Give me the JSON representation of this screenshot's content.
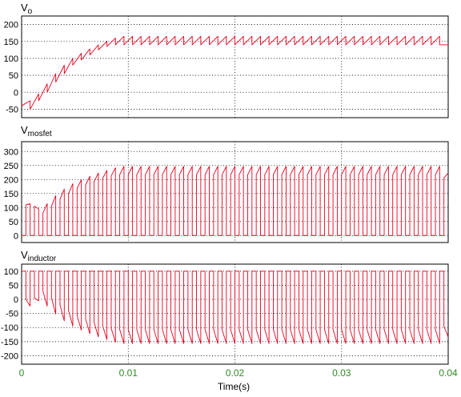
{
  "colors": {
    "trace": "#e8001c",
    "x_tick_labels": "#2e8b22",
    "axes": "#000000",
    "background": "#ffffff"
  },
  "x_axis": {
    "label": "Time(s)",
    "range": [
      0,
      0.04
    ],
    "ticks": [
      0,
      0.01,
      0.02,
      0.03,
      0.04
    ],
    "tick_labels": [
      "0",
      "0.01",
      "0.02",
      "0.03",
      "0.04"
    ]
  },
  "chart_data": [
    {
      "type": "line",
      "title_main": "V",
      "title_sub": "o",
      "ylim": [
        -75,
        225
      ],
      "yticks": [
        -50,
        0,
        50,
        100,
        150,
        200
      ],
      "ytick_labels": [
        "-50",
        "0",
        "50",
        "100",
        "150",
        "200"
      ],
      "grid": true,
      "series": [
        {
          "x": [
            0,
            0.0008,
            0.0008,
            0.0016,
            0.0016,
            0.0024,
            0.0024,
            0.0032,
            0.0032,
            0.004,
            0.004,
            0.0048,
            0.0048,
            0.0056,
            0.0056,
            0.0064,
            0.0064,
            0.0072,
            0.0072,
            0.008,
            0.008,
            0.0088,
            0.0088,
            0.0096,
            0.0096,
            0.0104,
            0.0104,
            0.0112,
            0.0112,
            0.012,
            0.012,
            0.0128,
            0.0128,
            0.0136,
            0.0136,
            0.0144,
            0.0144,
            0.0152,
            0.0152,
            0.016,
            0.016,
            0.0168,
            0.0168,
            0.0176,
            0.0176,
            0.0184,
            0.0184,
            0.0192,
            0.0192,
            0.02,
            0.02,
            0.0208,
            0.0208,
            0.0216,
            0.0216,
            0.0224,
            0.0224,
            0.0232,
            0.0232,
            0.024,
            0.024,
            0.0248,
            0.0248,
            0.0256,
            0.0256,
            0.0264,
            0.0264,
            0.0272,
            0.0272,
            0.028,
            0.028,
            0.0288,
            0.0288,
            0.0296,
            0.0296,
            0.0304,
            0.0304,
            0.0312,
            0.0312,
            0.032,
            0.032,
            0.0328,
            0.0328,
            0.0336,
            0.0336,
            0.0344,
            0.0344,
            0.0352,
            0.0352,
            0.036,
            0.036,
            0.0368,
            0.0368,
            0.0376,
            0.0376,
            0.0384,
            0.0384,
            0.0392,
            0.0392,
            0.04
          ],
          "y": [
            -40,
            -25,
            -50,
            -5,
            -25,
            25,
            0,
            55,
            30,
            80,
            55,
            100,
            80,
            115,
            95,
            128,
            110,
            140,
            125,
            150,
            135,
            160,
            140,
            165,
            140,
            165,
            140,
            165,
            140,
            165,
            140,
            165,
            140,
            165,
            140,
            165,
            140,
            165,
            140,
            165,
            140,
            165,
            140,
            165,
            140,
            165,
            140,
            165,
            140,
            165,
            140,
            165,
            140,
            165,
            140,
            165,
            140,
            165,
            140,
            165,
            140,
            165,
            140,
            165,
            140,
            165,
            140,
            165,
            140,
            165,
            140,
            165,
            140,
            165,
            140,
            165,
            140,
            165,
            140,
            165,
            140,
            165,
            140,
            165,
            140,
            165,
            140,
            165,
            140,
            165,
            140,
            165,
            140,
            165,
            140,
            165,
            140,
            165,
            140,
            140
          ]
        }
      ]
    },
    {
      "type": "line",
      "title_main": "V",
      "title_sub": "mosfet",
      "ylim": [
        -25,
        335
      ],
      "yticks": [
        0,
        50,
        100,
        150,
        200,
        250,
        300
      ],
      "ytick_labels": [
        "0",
        "50",
        "100",
        "150",
        "200",
        "250",
        "300"
      ],
      "grid": true,
      "series": [
        {
          "x": [
            0,
            0.0008,
            0.0008,
            0.0016,
            0.0016,
            0.0024,
            0.0024,
            0.0032,
            0.0032,
            0.004,
            0.004,
            0.0048,
            0.0048,
            0.0056,
            0.0056,
            0.0064,
            0.0064,
            0.0072,
            0.0072,
            0.008,
            0.008,
            0.0088,
            0.0088,
            0.0096,
            0.0096,
            0.0104,
            0.0104,
            0.0112,
            0.0112,
            0.012,
            0.012,
            0.0128,
            0.0128,
            0.0136,
            0.0136,
            0.0144,
            0.0144,
            0.0152,
            0.0152,
            0.016,
            0.016,
            0.0168,
            0.0168,
            0.0176,
            0.0176,
            0.0184,
            0.0184,
            0.0192,
            0.0192,
            0.02,
            0.02,
            0.0208,
            0.0208,
            0.0216,
            0.0216,
            0.0224,
            0.0224,
            0.0232,
            0.0232,
            0.024,
            0.024,
            0.0248,
            0.0248,
            0.0256,
            0.0256,
            0.0264,
            0.0264,
            0.0272,
            0.0272,
            0.028,
            0.028,
            0.0288,
            0.0288,
            0.0296,
            0.0296,
            0.0304,
            0.0304,
            0.0312,
            0.0312,
            0.032,
            0.032,
            0.0328,
            0.0328,
            0.0336,
            0.0336,
            0.0344,
            0.0344,
            0.0352,
            0.0352,
            0.036,
            0.036,
            0.0368,
            0.0368,
            0.0376,
            0.0376,
            0.0384,
            0.0384,
            0.0392,
            0.0392,
            0.04
          ],
          "y": [
            0,
            0,
            0,
            0,
            90,
            100,
            0,
            0,
            0,
            0,
            0,
            0,
            0,
            0,
            0,
            0,
            0,
            0,
            0,
            0,
            0,
            0,
            0,
            0,
            0,
            0,
            0,
            0,
            0,
            0,
            0,
            0,
            0,
            0,
            0,
            0,
            0,
            0,
            0,
            0,
            0,
            0,
            0,
            0,
            0,
            0,
            0,
            0,
            0,
            0,
            0,
            0,
            0,
            0,
            0,
            0,
            0,
            0,
            0,
            0,
            0,
            0,
            0,
            0,
            0,
            0,
            0,
            0,
            0,
            0,
            0,
            0,
            0,
            0,
            0,
            0,
            0,
            0,
            0,
            0,
            0,
            0,
            0,
            0,
            0,
            0,
            0,
            0,
            0,
            0,
            0,
            0,
            0,
            0,
            0,
            0,
            0,
            0,
            0,
            0
          ]
        }
      ]
    },
    {
      "type": "line",
      "title_main": "V",
      "title_sub": "inductor",
      "ylim": [
        -230,
        125
      ],
      "yticks": [
        -200,
        -150,
        -100,
        -50,
        0,
        50,
        100
      ],
      "ytick_labels": [
        "-200",
        "-150",
        "-100",
        "-50",
        "0",
        "50",
        "100"
      ],
      "grid": true,
      "series": [
        {
          "x": [
            0,
            0.04
          ],
          "y": [
            100,
            100
          ]
        }
      ]
    }
  ]
}
